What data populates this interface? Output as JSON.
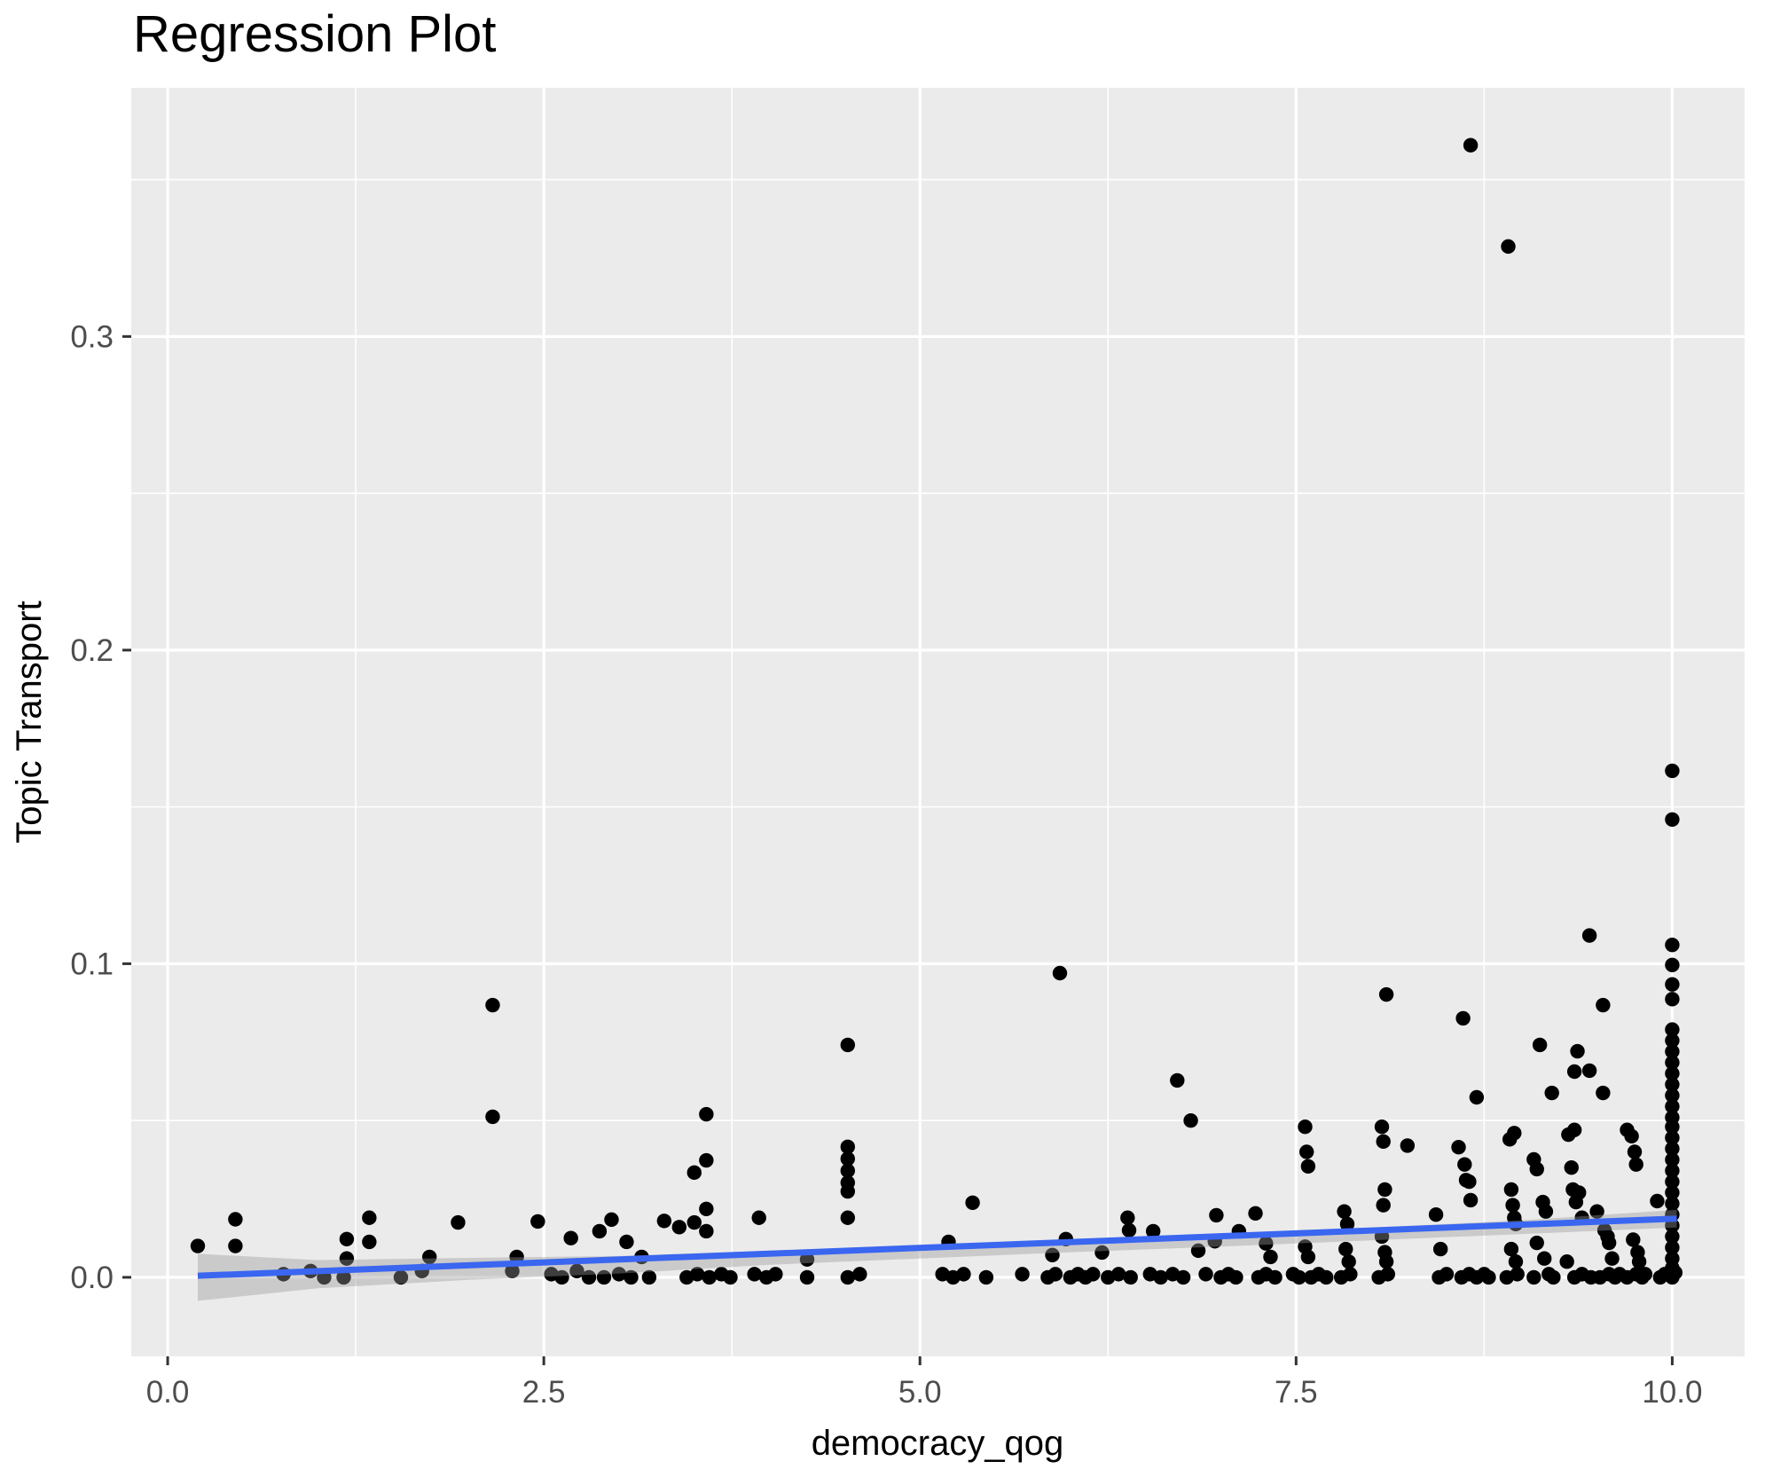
{
  "title": "Regression Plot",
  "colors": {
    "panel_background": "#EBEBEB",
    "gridline": "#FFFFFF",
    "point": "#000000",
    "regression_line": "#3A66F0",
    "confidence_band": "#999999",
    "tick_mark": "#333333",
    "tick_label": "#4D4D4D",
    "axis_title": "#000000",
    "title": "#000000"
  },
  "chart_data": {
    "type": "scatter",
    "title": "Regression Plot",
    "xlabel": "democracy_qog",
    "ylabel": "Topic Transport",
    "xlim": [
      -0.242,
      10.481
    ],
    "ylim": [
      -0.0252,
      0.3793
    ],
    "grid": true,
    "legend": false,
    "x_ticks": [
      0.0,
      2.5,
      5.0,
      7.5,
      10.0
    ],
    "x_tick_labels": [
      "0.0",
      "2.5",
      "5.0",
      "7.5",
      "10.0"
    ],
    "x_minor_gridlines": [
      1.25,
      3.75,
      6.25,
      8.75
    ],
    "y_ticks": [
      0.0,
      0.1,
      0.2,
      0.3
    ],
    "y_tick_labels": [
      "0.0",
      "0.1",
      "0.2",
      "0.3"
    ],
    "y_minor_gridlines": [
      0.05,
      0.15,
      0.25,
      0.35
    ],
    "regression_line": {
      "x": [
        0.2,
        10.03
      ],
      "y": [
        0.0005,
        0.0187
      ],
      "color": "#3A66F0",
      "width": 7
    },
    "confidence_band": {
      "x": [
        0.2,
        1.0,
        2.0,
        3.0,
        4.0,
        5.0,
        6.0,
        7.0,
        8.0,
        9.0,
        10.03
      ],
      "upper": [
        0.0075,
        0.0055,
        0.0062,
        0.0068,
        0.0085,
        0.0098,
        0.0122,
        0.0138,
        0.0158,
        0.0182,
        0.0215
      ],
      "lower": [
        -0.0075,
        -0.0035,
        -0.0008,
        0.0012,
        0.004,
        0.006,
        0.008,
        0.0098,
        0.0118,
        0.0138,
        0.0159
      ],
      "opacity": 0.4
    },
    "points": [
      [
        0.2,
        0.01
      ],
      [
        0.45,
        0.0185
      ],
      [
        0.45,
        0.01
      ],
      [
        0.77,
        0.001
      ],
      [
        0.95,
        0.002
      ],
      [
        1.04,
        0.0
      ],
      [
        1.17,
        0.0
      ],
      [
        1.19,
        0.0122
      ],
      [
        1.19,
        0.006
      ],
      [
        1.34,
        0.019
      ],
      [
        1.34,
        0.0113
      ],
      [
        1.55,
        0.0
      ],
      [
        1.69,
        0.002
      ],
      [
        1.74,
        0.0065
      ],
      [
        1.93,
        0.0175
      ],
      [
        2.16,
        0.0868
      ],
      [
        2.16,
        0.0512
      ],
      [
        2.29,
        0.002
      ],
      [
        2.32,
        0.0065
      ],
      [
        2.46,
        0.0178
      ],
      [
        2.55,
        0.001
      ],
      [
        2.62,
        0.0
      ],
      [
        2.68,
        0.0125
      ],
      [
        2.72,
        0.002
      ],
      [
        2.8,
        0.0
      ],
      [
        2.87,
        0.0147
      ],
      [
        2.9,
        0.0
      ],
      [
        2.95,
        0.0184
      ],
      [
        3.0,
        0.001
      ],
      [
        3.05,
        0.0113
      ],
      [
        3.08,
        0.0
      ],
      [
        3.15,
        0.0065
      ],
      [
        3.2,
        0.0
      ],
      [
        3.3,
        0.018
      ],
      [
        3.4,
        0.016
      ],
      [
        3.45,
        0.0
      ],
      [
        3.5,
        0.0334
      ],
      [
        3.5,
        0.0175
      ],
      [
        3.52,
        0.001
      ],
      [
        3.58,
        0.052
      ],
      [
        3.58,
        0.0373
      ],
      [
        3.58,
        0.0218
      ],
      [
        3.58,
        0.0147
      ],
      [
        3.6,
        0.0
      ],
      [
        3.68,
        0.001
      ],
      [
        3.74,
        0.0
      ],
      [
        3.9,
        0.001
      ],
      [
        3.93,
        0.019
      ],
      [
        3.98,
        0.0
      ],
      [
        4.04,
        0.001
      ],
      [
        4.25,
        0.0057
      ],
      [
        4.25,
        0.0
      ],
      [
        4.52,
        0.0741
      ],
      [
        4.52,
        0.0416
      ],
      [
        4.52,
        0.0378
      ],
      [
        4.52,
        0.034
      ],
      [
        4.52,
        0.0302
      ],
      [
        4.52,
        0.0274
      ],
      [
        4.52,
        0.019
      ],
      [
        4.52,
        0.0
      ],
      [
        4.6,
        0.001
      ],
      [
        5.15,
        0.001
      ],
      [
        5.19,
        0.0113
      ],
      [
        5.22,
        0.0
      ],
      [
        5.29,
        0.001
      ],
      [
        5.35,
        0.0238
      ],
      [
        5.44,
        0.0
      ],
      [
        5.68,
        0.001
      ],
      [
        5.85,
        0.0
      ],
      [
        5.88,
        0.0071
      ],
      [
        5.9,
        0.001
      ],
      [
        5.93,
        0.097
      ],
      [
        5.97,
        0.0122
      ],
      [
        6.0,
        0.0
      ],
      [
        6.05,
        0.001
      ],
      [
        6.1,
        0.0
      ],
      [
        6.15,
        0.001
      ],
      [
        6.21,
        0.0079
      ],
      [
        6.25,
        0.0
      ],
      [
        6.32,
        0.001
      ],
      [
        6.38,
        0.019
      ],
      [
        6.39,
        0.015
      ],
      [
        6.4,
        0.0
      ],
      [
        6.53,
        0.001
      ],
      [
        6.55,
        0.0147
      ],
      [
        6.6,
        0.0
      ],
      [
        6.68,
        0.001
      ],
      [
        6.71,
        0.0628
      ],
      [
        6.75,
        0.0
      ],
      [
        6.8,
        0.05
      ],
      [
        6.85,
        0.0085
      ],
      [
        6.9,
        0.001
      ],
      [
        6.96,
        0.0115
      ],
      [
        6.97,
        0.0198
      ],
      [
        7.0,
        0.0
      ],
      [
        7.05,
        0.001
      ],
      [
        7.1,
        0.0
      ],
      [
        7.12,
        0.0147
      ],
      [
        7.23,
        0.0204
      ],
      [
        7.25,
        0.0
      ],
      [
        7.3,
        0.0108
      ],
      [
        7.3,
        0.001
      ],
      [
        7.33,
        0.0065
      ],
      [
        7.36,
        0.0
      ],
      [
        7.48,
        0.001
      ],
      [
        7.52,
        0.0
      ],
      [
        7.56,
        0.048
      ],
      [
        7.56,
        0.0098
      ],
      [
        7.57,
        0.04
      ],
      [
        7.58,
        0.0354
      ],
      [
        7.58,
        0.0065
      ],
      [
        7.6,
        0.0
      ],
      [
        7.65,
        0.001
      ],
      [
        7.7,
        0.0
      ],
      [
        7.8,
        0.0
      ],
      [
        7.82,
        0.021
      ],
      [
        7.83,
        0.009
      ],
      [
        7.84,
        0.017
      ],
      [
        7.85,
        0.005
      ],
      [
        7.86,
        0.001
      ],
      [
        8.05,
        0.0
      ],
      [
        8.07,
        0.048
      ],
      [
        8.07,
        0.013
      ],
      [
        8.08,
        0.0433
      ],
      [
        8.08,
        0.023
      ],
      [
        8.09,
        0.028
      ],
      [
        8.09,
        0.008
      ],
      [
        8.1,
        0.0902
      ],
      [
        8.1,
        0.005
      ],
      [
        8.11,
        0.001
      ],
      [
        8.24,
        0.042
      ],
      [
        8.43,
        0.02
      ],
      [
        8.45,
        0.0
      ],
      [
        8.46,
        0.009
      ],
      [
        8.5,
        0.001
      ],
      [
        8.58,
        0.0415
      ],
      [
        8.6,
        0.0
      ],
      [
        8.61,
        0.0826
      ],
      [
        8.62,
        0.036
      ],
      [
        8.63,
        0.031
      ],
      [
        8.65,
        0.0305
      ],
      [
        8.65,
        0.001
      ],
      [
        8.66,
        0.0246
      ],
      [
        8.7,
        0.0574
      ],
      [
        8.7,
        0.0
      ],
      [
        8.75,
        0.001
      ],
      [
        8.78,
        0.0
      ],
      [
        8.66,
        0.361
      ],
      [
        8.91,
        0.3287
      ],
      [
        8.9,
        0.0
      ],
      [
        8.92,
        0.044
      ],
      [
        8.93,
        0.028
      ],
      [
        8.93,
        0.009
      ],
      [
        8.94,
        0.023
      ],
      [
        8.95,
        0.046
      ],
      [
        8.95,
        0.019
      ],
      [
        8.96,
        0.017
      ],
      [
        8.96,
        0.005
      ],
      [
        8.97,
        0.001
      ],
      [
        9.08,
        0.0376
      ],
      [
        9.08,
        0.0
      ],
      [
        9.1,
        0.0345
      ],
      [
        9.1,
        0.011
      ],
      [
        9.12,
        0.0741
      ],
      [
        9.14,
        0.024
      ],
      [
        9.15,
        0.006
      ],
      [
        9.16,
        0.021
      ],
      [
        9.18,
        0.001
      ],
      [
        9.2,
        0.0588
      ],
      [
        9.21,
        0.0
      ],
      [
        9.3,
        0.005
      ],
      [
        9.31,
        0.0455
      ],
      [
        9.33,
        0.035
      ],
      [
        9.34,
        0.028
      ],
      [
        9.35,
        0.0656
      ],
      [
        9.35,
        0.047
      ],
      [
        9.35,
        0.0
      ],
      [
        9.36,
        0.024
      ],
      [
        9.37,
        0.0721
      ],
      [
        9.38,
        0.027
      ],
      [
        9.4,
        0.019
      ],
      [
        9.4,
        0.001
      ],
      [
        9.45,
        0.109
      ],
      [
        9.45,
        0.0659
      ],
      [
        9.46,
        0.0
      ],
      [
        9.5,
        0.021
      ],
      [
        9.52,
        0.0
      ],
      [
        9.54,
        0.0868
      ],
      [
        9.54,
        0.0588
      ],
      [
        9.55,
        0.015
      ],
      [
        9.57,
        0.013
      ],
      [
        9.58,
        0.011
      ],
      [
        9.58,
        0.001
      ],
      [
        9.6,
        0.006
      ],
      [
        9.62,
        0.0
      ],
      [
        9.65,
        0.001
      ],
      [
        9.7,
        0.047
      ],
      [
        9.7,
        0.0
      ],
      [
        9.73,
        0.045
      ],
      [
        9.74,
        0.012
      ],
      [
        9.75,
        0.04
      ],
      [
        9.76,
        0.036
      ],
      [
        9.76,
        0.001
      ],
      [
        9.77,
        0.008
      ],
      [
        9.78,
        0.005
      ],
      [
        9.8,
        0.0
      ],
      [
        9.82,
        0.001
      ],
      [
        9.9,
        0.0243
      ],
      [
        9.92,
        0.0
      ],
      [
        9.95,
        0.001
      ],
      [
        10.0,
        0.1615
      ],
      [
        10.0,
        0.146
      ],
      [
        10.0,
        0.106
      ],
      [
        10.0,
        0.0996
      ],
      [
        10.0,
        0.0934
      ],
      [
        10.0,
        0.0887
      ],
      [
        10.0,
        0.079
      ],
      [
        10.0,
        0.0755
      ],
      [
        10.0,
        0.072
      ],
      [
        10.0,
        0.0685
      ],
      [
        10.0,
        0.065
      ],
      [
        10.0,
        0.0615
      ],
      [
        10.0,
        0.058
      ],
      [
        10.0,
        0.0545
      ],
      [
        10.0,
        0.051
      ],
      [
        10.0,
        0.048
      ],
      [
        10.0,
        0.0445
      ],
      [
        10.0,
        0.041
      ],
      [
        10.0,
        0.0375
      ],
      [
        10.0,
        0.034
      ],
      [
        10.0,
        0.0305
      ],
      [
        10.0,
        0.027
      ],
      [
        10.0,
        0.0235
      ],
      [
        10.0,
        0.02
      ],
      [
        10.0,
        0.0165
      ],
      [
        10.0,
        0.013
      ],
      [
        10.0,
        0.0095
      ],
      [
        10.0,
        0.006
      ],
      [
        10.0,
        0.003
      ],
      [
        10.0,
        0.0
      ],
      [
        10.02,
        0.0015
      ]
    ]
  }
}
